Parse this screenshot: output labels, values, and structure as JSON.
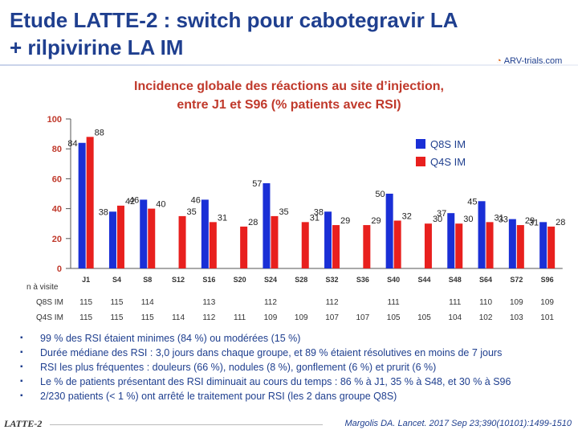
{
  "slide": {
    "title_line1": "Etude LATTE-2 : switch pour cabotegravir LA",
    "title_line2": "+ rilpivirine LA IM",
    "logo_text": "ARV-trials.com",
    "footer_study": "LATTE-2",
    "reference": "Margolis DA. Lancet. 2017 Sep 23;390(10101):1499-1510"
  },
  "chart_data": {
    "type": "bar",
    "title_line1": "Incidence globale des réactions au site d’injection,",
    "title_line2": "entre J1 et S96 (% patients avec RSI)",
    "categories": [
      "J1",
      "S4",
      "S8",
      "S12",
      "S16",
      "S20",
      "S24",
      "S28",
      "S32",
      "S36",
      "S40",
      "S44",
      "S48",
      "S64",
      "S72",
      "S96"
    ],
    "series": [
      {
        "name": "Q8S IM",
        "color": "#1a2fd6",
        "values": [
          84,
          38,
          46,
          null,
          46,
          null,
          57,
          null,
          38,
          null,
          50,
          null,
          37,
          45,
          33,
          31
        ]
      },
      {
        "name": "Q4S IM",
        "color": "#e8201e",
        "values": [
          88,
          42,
          40,
          35,
          31,
          28,
          35,
          31,
          29,
          29,
          32,
          30,
          30,
          31,
          29,
          28
        ]
      }
    ],
    "yticks": [
      0,
      20,
      40,
      60,
      80,
      100
    ],
    "ylim": [
      0,
      100
    ],
    "legend_position": "top-right"
  },
  "n_table": {
    "label": "n à visite",
    "rows": [
      {
        "name": "Q8S IM",
        "values": [
          "115",
          "115",
          "114",
          "",
          "113",
          "",
          "112",
          "",
          "112",
          "",
          "111",
          "",
          "111",
          "110",
          "109",
          "109"
        ]
      },
      {
        "name": "Q4S IM",
        "values": [
          "115",
          "115",
          "115",
          "114",
          "112",
          "111",
          "109",
          "109",
          "107",
          "107",
          "105",
          "105",
          "104",
          "102",
          "103",
          "101"
        ]
      }
    ]
  },
  "bullets": [
    "99 % des RSI étaient minimes (84 %) ou modérées (15 %)",
    "Durée médiane des RSI : 3,0 jours dans chaque groupe, et 89 % étaient résolutives en moins de 7 jours",
    "RSI les plus fréquentes : douleurs (66 %), nodules (8 %), gonflement (6 %) et prurit (6 %)",
    "Le % de patients présentant des RSI diminuait au cours du temps : 86 % à J1, 35 % à S48, et 30 % à S96",
    "2/230 patients (< 1 %) ont arrêté le traitement pour RSI (les 2 dans groupe Q8S)"
  ]
}
